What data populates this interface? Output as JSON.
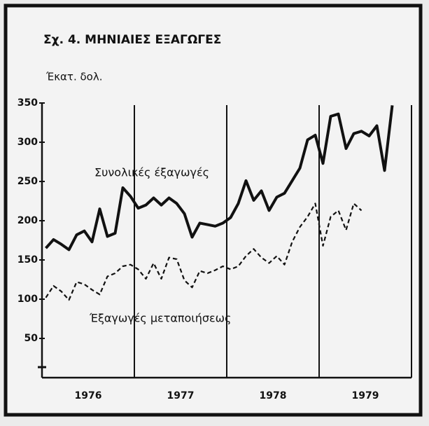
{
  "chart_data": {
    "type": "line",
    "title": "Σχ. 4. ΜΗΝΙΑΙΕΣ ΕΞΑΓΩΓΕΣ",
    "y_axis_label": "Έκατ. δολ.",
    "annotations": [
      "Συνολικές έξαγωγές",
      "Έξαγωγές μεταποιήσεως"
    ],
    "year_labels": [
      "1976",
      "1977",
      "1978",
      "1979"
    ],
    "categories": [
      null,
      null,
      null,
      null,
      null,
      null,
      null,
      null,
      null,
      null,
      null,
      null,
      null,
      null,
      null,
      null,
      null,
      null,
      null,
      null,
      null,
      null,
      null,
      null,
      null,
      null,
      null,
      null,
      null,
      null,
      null,
      null,
      null,
      null,
      null,
      null,
      null,
      null,
      null,
      null,
      null,
      null,
      null,
      null,
      null,
      null
    ],
    "series": [
      {
        "name": "Συνολικές έξαγωγές",
        "color": "#111111",
        "dashed": false,
        "values": [
          165,
          176,
          170,
          163,
          182,
          187,
          173,
          215,
          180,
          184,
          242,
          231,
          216,
          220,
          229,
          220,
          229,
          222,
          209,
          179,
          197,
          195,
          193,
          197,
          204,
          222,
          251,
          226,
          238,
          213,
          230,
          235,
          251,
          267,
          303,
          309,
          273,
          333,
          336,
          292,
          311,
          314,
          308,
          321,
          264,
          347
        ]
      },
      {
        "name": "Έξαγωγές μεταποιήσεως",
        "color": "#111111",
        "dashed": true,
        "values": [
          102,
          117,
          110,
          99,
          122,
          119,
          112,
          106,
          129,
          133,
          142,
          144,
          138,
          126,
          146,
          126,
          153,
          151,
          124,
          115,
          136,
          133,
          137,
          142,
          138,
          142,
          155,
          164,
          153,
          146,
          155,
          144,
          173,
          192,
          205,
          222,
          168,
          205,
          213,
          188,
          222,
          213,
          null,
          null,
          null,
          null
        ]
      }
    ],
    "ylim": [
      0,
      350
    ],
    "yticks": [
      50,
      100,
      150,
      200,
      250,
      300,
      350
    ]
  }
}
